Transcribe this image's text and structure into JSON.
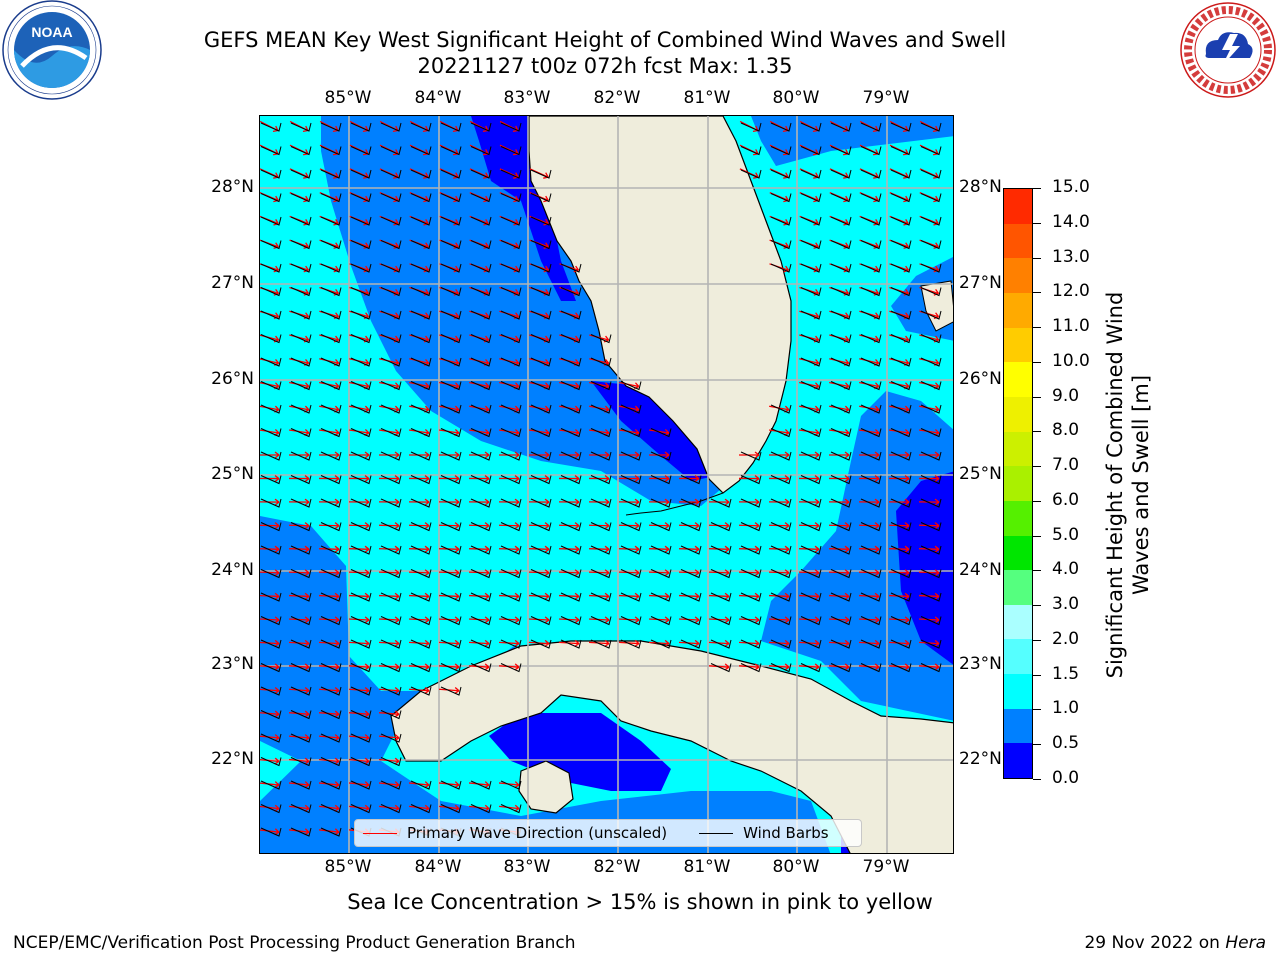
{
  "header": {
    "title_line1": "GEFS MEAN Key West Significant Height of Combined Wind Waves and Swell",
    "title_line2": "20221127 t00z 072h fcst   Max: 1.35"
  },
  "logos": {
    "left": {
      "name": "NOAA",
      "text": "NOAA",
      "ring_text": "NATIONAL OCEANIC AND ATMOSPHERIC ADMINISTRATION · U.S. DEPARTMENT OF COMMERCE"
    },
    "right": {
      "name": "National Weather Service",
      "ring_text": "NATIONAL WEATHER SERVICE"
    }
  },
  "map": {
    "longitude_ticks": [
      "85°W",
      "84°W",
      "83°W",
      "82°W",
      "81°W",
      "80°W",
      "79°W"
    ],
    "latitude_ticks": [
      "28°N",
      "27°N",
      "26°N",
      "25°N",
      "24°N",
      "23°N",
      "22°N"
    ],
    "colors": {
      "land": "#efeddc",
      "coast": "#000000",
      "grid": "#b4b4b4",
      "wave_arrow": "#ff0000",
      "wind_barb": "#000000"
    },
    "legend": {
      "wave_direction": "Primary Wave Direction (unscaled)",
      "wind_barbs": "Wind Barbs"
    }
  },
  "colorbar": {
    "label": "Significant Height of Combined Wind Waves and Swell [m]",
    "ticks": [
      "0.0",
      "0.5",
      "1.0",
      "1.5",
      "2.0",
      "3.0",
      "4.0",
      "5.0",
      "6.0",
      "7.0",
      "8.0",
      "9.0",
      "10.0",
      "11.0",
      "12.0",
      "13.0",
      "14.0",
      "15.0"
    ],
    "colors": [
      "#0000ff",
      "#0080ff",
      "#00ffff",
      "#55ffff",
      "#aaffff",
      "#55ff7f",
      "#00e600",
      "#55f000",
      "#aaf000",
      "#ccf000",
      "#eef000",
      "#ffff00",
      "#ffcc00",
      "#ffaa00",
      "#ff8000",
      "#ff5500",
      "#ff2a00",
      "#ff0000"
    ]
  },
  "subtitle": "Sea Ice Concentration > 15% is shown in pink to yellow",
  "footer": {
    "left": "NCEP/EMC/Verification Post Processing Product Generation Branch",
    "right_date": "29 Nov 2022 on",
    "right_machine": "Hera"
  }
}
